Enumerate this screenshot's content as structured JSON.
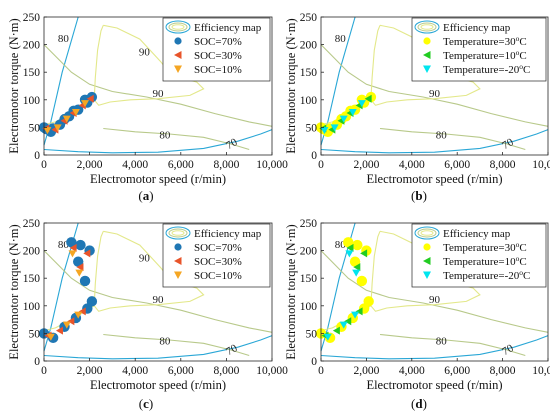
{
  "colors": {
    "axis": "#262626",
    "contour_70": "#2aa7d6",
    "contour_80": "#b8c98a",
    "contour_90": "#e3e88a",
    "soc70": "#1f77b4",
    "soc30": "#e8542a",
    "soc10": "#f5a623",
    "t30": "#ffff00",
    "t10": "#22cc22",
    "tm20": "#00e5ee"
  },
  "chart_data": [
    {
      "type": "scatter",
      "panel_label": "(a)",
      "xlabel": "Electromotor speed (r/min)",
      "ylabel": "Electromotor torque (N·m)",
      "xlim": [
        0,
        10000
      ],
      "ylim": [
        0,
        250
      ],
      "x_ticks": [
        "0",
        "2,000",
        "4,000",
        "6,000",
        "8,000",
        "10,000"
      ],
      "y_ticks": [
        "0",
        "50",
        "100",
        "150",
        "200",
        "250"
      ],
      "contour_labels": [
        "80",
        "90",
        "90",
        "80",
        "70"
      ],
      "legend_position": "top-right",
      "series": [
        {
          "name": "Efficiency map",
          "marker": "contour",
          "color": "#e3e88a"
        },
        {
          "name": "SOC=70%",
          "marker": "circle",
          "color": "#1f77b4",
          "points": [
            [
              0,
              50
            ],
            [
              300,
              42
            ],
            [
              700,
              55
            ],
            [
              1100,
              70
            ],
            [
              1500,
              82
            ],
            [
              1900,
              95
            ],
            [
              2100,
              105
            ],
            [
              1800,
              100
            ],
            [
              1300,
              80
            ],
            [
              900,
              65
            ],
            [
              400,
              48
            ],
            [
              100,
              47
            ]
          ]
        },
        {
          "name": "SOC=30%",
          "marker": "triangle-left",
          "color": "#e8542a",
          "points": [
            [
              100,
              48
            ],
            [
              500,
              46
            ],
            [
              900,
              62
            ],
            [
              1300,
              76
            ],
            [
              1700,
              90
            ],
            [
              2050,
              102
            ]
          ]
        },
        {
          "name": "SOC=10%",
          "marker": "triangle-down",
          "color": "#f5a623",
          "points": [
            [
              150,
              45
            ],
            [
              600,
              50
            ],
            [
              1000,
              66
            ],
            [
              1400,
              78
            ],
            [
              1800,
              94
            ]
          ]
        }
      ]
    },
    {
      "type": "scatter",
      "panel_label": "(b)",
      "xlabel": "Electromotor speed (r/min)",
      "ylabel": "Electromotor torque (N·m)",
      "xlim": [
        0,
        10000
      ],
      "ylim": [
        0,
        250
      ],
      "x_ticks": [
        "0",
        "2,000",
        "4,000",
        "6,000",
        "8,000",
        "10,000"
      ],
      "y_ticks": [
        "0",
        "50",
        "100",
        "150",
        "200",
        "250"
      ],
      "contour_labels": [
        "80",
        "90",
        "90",
        "80",
        "70"
      ],
      "legend_position": "top-right",
      "series": [
        {
          "name": "Efficiency map",
          "marker": "contour",
          "color": "#e3e88a"
        },
        {
          "name": "Temperature=30°C",
          "marker": "circle",
          "color": "#ffff00",
          "points": [
            [
              0,
              50
            ],
            [
              300,
              42
            ],
            [
              700,
              55
            ],
            [
              1100,
              70
            ],
            [
              1500,
              82
            ],
            [
              1900,
              95
            ],
            [
              2200,
              105
            ],
            [
              1800,
              100
            ],
            [
              1300,
              80
            ],
            [
              900,
              65
            ],
            [
              400,
              48
            ],
            [
              100,
              47
            ]
          ]
        },
        {
          "name": "Temperature=10°C",
          "marker": "triangle-left",
          "color": "#22cc22",
          "points": [
            [
              100,
              48
            ],
            [
              500,
              46
            ],
            [
              900,
              62
            ],
            [
              1300,
              76
            ],
            [
              1700,
              90
            ],
            [
              2100,
              102
            ]
          ]
        },
        {
          "name": "Temperature=-20°C",
          "marker": "triangle-down",
          "color": "#00e5ee",
          "points": [
            [
              150,
              45
            ],
            [
              600,
              50
            ],
            [
              1000,
              66
            ],
            [
              1400,
              78
            ],
            [
              1800,
              94
            ]
          ]
        }
      ]
    },
    {
      "type": "scatter",
      "panel_label": "(c)",
      "xlabel": "Electromotor speed (r/min)",
      "ylabel": "Electromotor torque (N·m)",
      "xlim": [
        0,
        10000
      ],
      "ylim": [
        0,
        250
      ],
      "x_ticks": [
        "0",
        "2,000",
        "4,000",
        "6,000",
        "8,000",
        "10,000"
      ],
      "y_ticks": [
        "0",
        "50",
        "100",
        "150",
        "200",
        "250"
      ],
      "contour_labels": [
        "80",
        "90",
        "90",
        "80",
        "70"
      ],
      "legend_position": "top-right",
      "series": [
        {
          "name": "Efficiency map",
          "marker": "contour",
          "color": "#e3e88a"
        },
        {
          "name": "SOC=70%",
          "marker": "circle",
          "color": "#1f77b4",
          "points": [
            [
              0,
              50
            ],
            [
              400,
              42
            ],
            [
              900,
              62
            ],
            [
              1400,
              78
            ],
            [
              1900,
              95
            ],
            [
              2100,
              108
            ],
            [
              1200,
              215
            ],
            [
              1500,
              180
            ],
            [
              1800,
              145
            ],
            [
              1600,
              210
            ],
            [
              2000,
              200
            ]
          ]
        },
        {
          "name": "SOC=30%",
          "marker": "triangle-left",
          "color": "#e8542a",
          "points": [
            [
              200,
              46
            ],
            [
              700,
              55
            ],
            [
              1200,
              72
            ],
            [
              1700,
              90
            ],
            [
              1300,
              205
            ],
            [
              1600,
              170
            ],
            [
              1900,
              195
            ]
          ]
        },
        {
          "name": "SOC=10%",
          "marker": "triangle-down",
          "color": "#f5a623",
          "points": [
            [
              300,
              44
            ],
            [
              1000,
              66
            ],
            [
              1500,
              84
            ],
            [
              1250,
              195
            ],
            [
              1550,
              160
            ]
          ]
        }
      ]
    },
    {
      "type": "scatter",
      "panel_label": "(d)",
      "xlabel": "Electromotor speed (r/min)",
      "ylabel": "Electromotor torque (N·m)",
      "xlim": [
        0,
        10000
      ],
      "ylim": [
        0,
        250
      ],
      "x_ticks": [
        "0",
        "2,000",
        "4,000",
        "6,000",
        "8,000",
        "10,000"
      ],
      "y_ticks": [
        "0",
        "50",
        "100",
        "150",
        "200",
        "250"
      ],
      "contour_labels": [
        "80",
        "90",
        "90",
        "80",
        "70"
      ],
      "legend_position": "top-right",
      "series": [
        {
          "name": "Efficiency map",
          "marker": "contour",
          "color": "#e3e88a"
        },
        {
          "name": "Temperature=30°C",
          "marker": "circle",
          "color": "#ffff00",
          "points": [
            [
              0,
              50
            ],
            [
              400,
              42
            ],
            [
              900,
              62
            ],
            [
              1400,
              78
            ],
            [
              1900,
              95
            ],
            [
              2100,
              108
            ],
            [
              1200,
              215
            ],
            [
              1500,
              180
            ],
            [
              1800,
              145
            ],
            [
              1600,
              210
            ],
            [
              2000,
              200
            ]
          ]
        },
        {
          "name": "Temperature=10°C",
          "marker": "triangle-left",
          "color": "#22cc22",
          "points": [
            [
              200,
              46
            ],
            [
              700,
              55
            ],
            [
              1200,
              72
            ],
            [
              1700,
              90
            ],
            [
              1300,
              205
            ],
            [
              1600,
              170
            ],
            [
              1900,
              195
            ]
          ]
        },
        {
          "name": "Temperature=-20°C",
          "marker": "triangle-down",
          "color": "#00e5ee",
          "points": [
            [
              300,
              44
            ],
            [
              1000,
              66
            ],
            [
              1500,
              84
            ],
            [
              1250,
              195
            ],
            [
              1550,
              160
            ]
          ]
        }
      ]
    }
  ]
}
